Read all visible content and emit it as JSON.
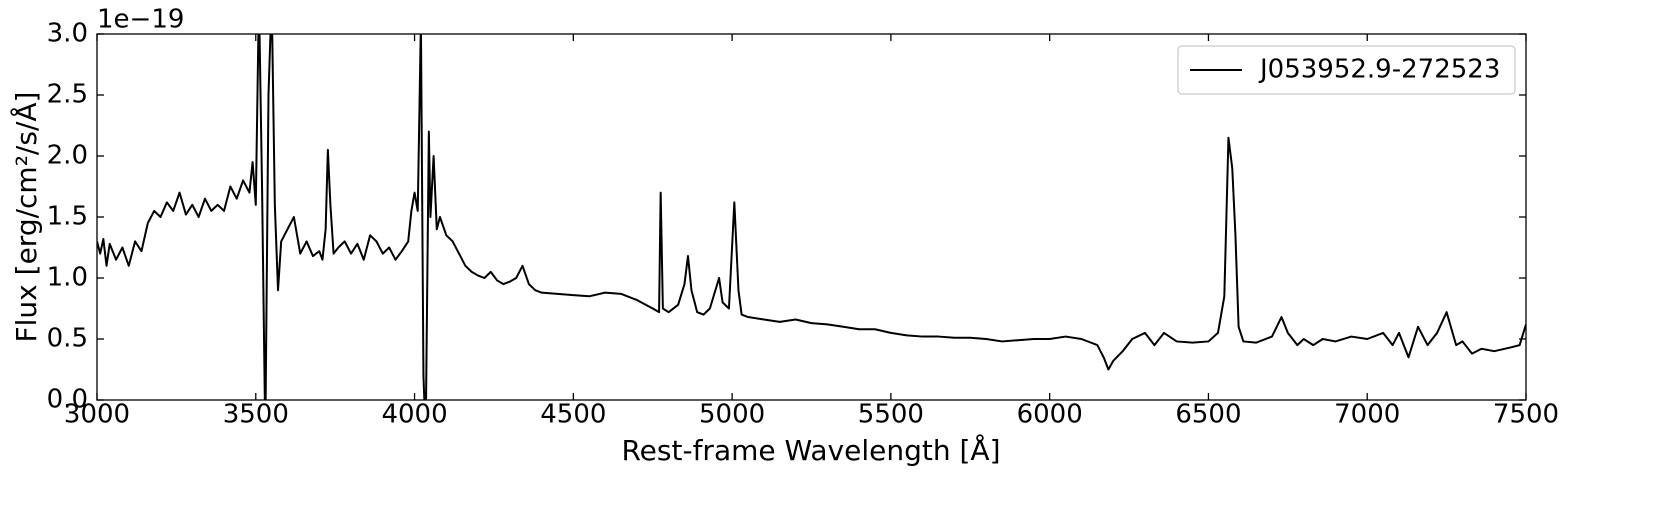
{
  "chart_data": {
    "type": "line",
    "y_offset_label": "1e−19",
    "xlabel": "Rest-frame Wavelength [Å]",
    "ylabel": "Flux [erg/cm²/s/Å]",
    "xlim": [
      3000,
      7500
    ],
    "ylim": [
      0,
      3
    ],
    "xticks": [
      3000,
      3500,
      4000,
      4500,
      5000,
      5500,
      6000,
      6500,
      7000,
      7500
    ],
    "yticks": [
      {
        "value": 0,
        "label": "0.0"
      },
      0.5,
      {
        "value": 1,
        "label": "1.0"
      },
      1.5,
      {
        "value": 2,
        "label": "2.0"
      },
      2.5,
      {
        "value": 3,
        "label": "3.0"
      }
    ],
    "legend": "upper right",
    "x": [
      3000,
      3010,
      3020,
      3030,
      3040,
      3060,
      3080,
      3100,
      3120,
      3140,
      3160,
      3180,
      3200,
      3220,
      3240,
      3260,
      3280,
      3300,
      3320,
      3340,
      3360,
      3380,
      3400,
      3420,
      3440,
      3460,
      3480,
      3490,
      3500,
      3510,
      3520,
      3530,
      3540,
      3550,
      3560,
      3570,
      3580,
      3600,
      3620,
      3640,
      3660,
      3680,
      3700,
      3710,
      3720,
      3727,
      3735,
      3745,
      3760,
      3780,
      3800,
      3820,
      3840,
      3860,
      3880,
      3900,
      3920,
      3940,
      3960,
      3980,
      3990,
      4000,
      4010,
      4020,
      4028,
      4035,
      4045,
      4050,
      4060,
      4070,
      4080,
      4100,
      4120,
      4140,
      4160,
      4180,
      4200,
      4220,
      4240,
      4260,
      4280,
      4300,
      4320,
      4340,
      4360,
      4380,
      4400,
      4450,
      4500,
      4550,
      4600,
      4650,
      4700,
      4750,
      4770,
      4775,
      4782,
      4800,
      4830,
      4850,
      4861,
      4872,
      4890,
      4910,
      4930,
      4959,
      4970,
      4990,
      5007,
      5020,
      5030,
      5050,
      5100,
      5150,
      5200,
      5250,
      5300,
      5350,
      5400,
      5450,
      5500,
      5550,
      5600,
      5650,
      5700,
      5750,
      5800,
      5850,
      5900,
      5950,
      6000,
      6050,
      6100,
      6150,
      6170,
      6185,
      6200,
      6230,
      6260,
      6300,
      6330,
      6360,
      6400,
      6450,
      6500,
      6530,
      6550,
      6563,
      6575,
      6585,
      6595,
      6610,
      6650,
      6700,
      6730,
      6750,
      6780,
      6800,
      6830,
      6860,
      6900,
      6950,
      7000,
      7050,
      7080,
      7100,
      7130,
      7160,
      7190,
      7220,
      7250,
      7280,
      7300,
      7330,
      7360,
      7400,
      7450,
      7480,
      7500
    ],
    "series": [
      {
        "name": "J053952.9-272523",
        "color": "#000000",
        "values": [
          1.3,
          1.2,
          1.32,
          1.1,
          1.28,
          1.15,
          1.25,
          1.1,
          1.3,
          1.22,
          1.45,
          1.55,
          1.5,
          1.62,
          1.55,
          1.7,
          1.52,
          1.6,
          1.5,
          1.65,
          1.55,
          1.6,
          1.55,
          1.75,
          1.65,
          1.8,
          1.7,
          1.95,
          1.6,
          3.3,
          1.7,
          -0.3,
          2.5,
          3.3,
          1.6,
          0.9,
          1.3,
          1.4,
          1.5,
          1.2,
          1.3,
          1.18,
          1.22,
          1.15,
          1.4,
          2.05,
          1.6,
          1.2,
          1.25,
          1.3,
          1.2,
          1.28,
          1.15,
          1.35,
          1.3,
          1.2,
          1.25,
          1.15,
          1.22,
          1.3,
          1.55,
          1.7,
          1.55,
          3.1,
          0.2,
          -0.3,
          2.2,
          1.5,
          2.0,
          1.4,
          1.5,
          1.35,
          1.3,
          1.2,
          1.1,
          1.05,
          1.02,
          1.0,
          1.05,
          0.98,
          0.95,
          0.97,
          1.0,
          1.1,
          0.95,
          0.9,
          0.88,
          0.87,
          0.86,
          0.85,
          0.88,
          0.87,
          0.82,
          0.75,
          0.72,
          1.7,
          0.75,
          0.72,
          0.78,
          0.95,
          1.18,
          0.9,
          0.72,
          0.7,
          0.75,
          1.0,
          0.8,
          0.75,
          1.62,
          0.9,
          0.7,
          0.68,
          0.66,
          0.64,
          0.66,
          0.63,
          0.62,
          0.6,
          0.58,
          0.58,
          0.55,
          0.53,
          0.52,
          0.52,
          0.51,
          0.51,
          0.5,
          0.48,
          0.49,
          0.5,
          0.5,
          0.52,
          0.5,
          0.45,
          0.35,
          0.25,
          0.32,
          0.4,
          0.5,
          0.55,
          0.45,
          0.55,
          0.48,
          0.47,
          0.48,
          0.55,
          0.85,
          2.15,
          1.9,
          1.35,
          0.6,
          0.48,
          0.47,
          0.52,
          0.68,
          0.55,
          0.45,
          0.5,
          0.45,
          0.5,
          0.48,
          0.52,
          0.5,
          0.55,
          0.45,
          0.55,
          0.35,
          0.6,
          0.45,
          0.55,
          0.72,
          0.45,
          0.48,
          0.38,
          0.42,
          0.4,
          0.43,
          0.45,
          0.62
        ]
      }
    ]
  }
}
